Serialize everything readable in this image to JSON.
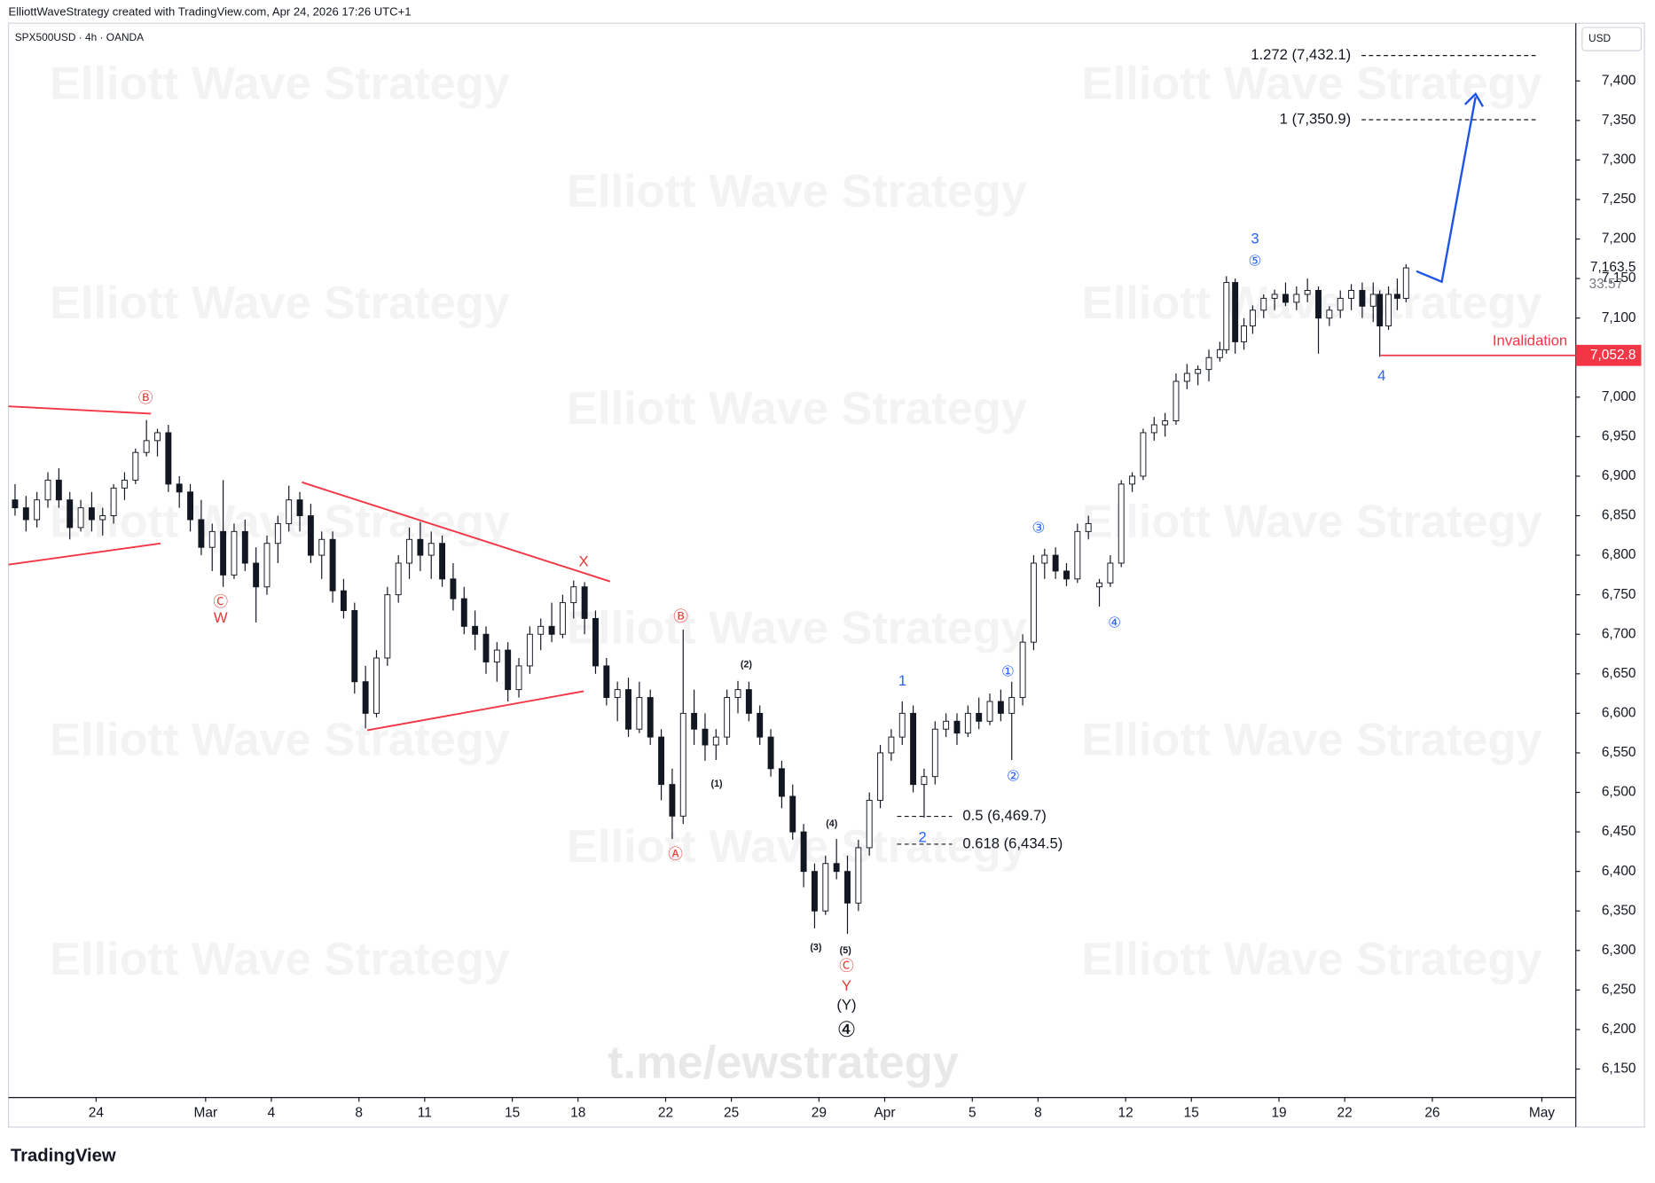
{
  "header": {
    "credit": "ElliottWaveStrategy created with TradingView.com, Apr 24, 2026 17:26 UTC+1",
    "logo": "TradingView"
  },
  "watermark": "Elliott Wave Strategy",
  "channel": "t.me/ewstrategy",
  "chart_data": {
    "type": "candlestick",
    "title": "SPX500USD · 4h · OANDA",
    "currency": "USD",
    "up_color": "#ffffff",
    "down_color": "#131722",
    "outline_color": "#131722",
    "x": [
      20.3,
      20.8,
      21.3,
      21.8,
      22.3,
      22.8,
      23.3,
      23.8,
      24.3,
      24.8,
      25.3,
      25.8,
      26.3,
      26.8,
      27.3,
      27.8,
      28.3,
      28.8,
      29.3,
      29.8,
      30.3,
      30.8,
      31.3,
      31.8,
      32.3,
      32.8,
      33.3,
      33.8,
      34.3,
      34.8,
      35.3,
      35.8,
      36.3,
      36.8,
      37.3,
      37.8,
      38.3,
      38.8,
      39.3,
      39.8,
      40.3,
      40.8,
      41.3,
      41.8,
      42.3,
      42.8,
      43.3,
      43.8,
      44.3,
      44.8,
      45.3,
      45.8,
      46.3,
      46.8,
      47.3,
      47.8,
      48.3,
      48.8,
      49.3,
      49.8,
      50.3,
      50.8,
      51.3,
      51.8,
      52.3,
      52.8,
      53.3,
      53.8,
      54.3,
      54.8,
      55.3,
      55.8,
      56.3,
      56.8,
      57.3,
      57.8,
      58.3,
      58.8,
      59.3,
      59.8,
      60.3,
      60.8,
      61.3,
      61.8,
      62.3,
      62.8,
      63.3,
      63.8,
      64.3,
      64.8,
      65.3,
      65.8,
      66.3,
      66.8,
      67.3,
      67.8,
      68.3,
      68.8,
      69.3,
      69.8,
      70.3,
      70.8,
      71.3,
      71.8,
      72.3,
      72.8,
      73.3,
      73.8,
      74.3,
      74.8,
      75.3,
      75.6,
      76.0,
      76.4,
      76.8,
      77.3,
      77.8,
      78.3,
      78.8,
      79.3,
      79.8,
      80.3,
      80.8,
      81.3,
      81.8,
      82.3,
      82.6,
      83.0,
      83.4,
      83.8
    ],
    "open": [
      6870,
      6860,
      6845,
      6870,
      6895,
      6870,
      6835,
      6860,
      6845,
      6850,
      6885,
      6895,
      6930,
      6945,
      6955,
      6890,
      6880,
      6845,
      6810,
      6830,
      6775,
      6830,
      6790,
      6760,
      6815,
      6840,
      6870,
      6850,
      6800,
      6820,
      6755,
      6730,
      6640,
      6600,
      6670,
      6750,
      6790,
      6820,
      6800,
      6815,
      6770,
      6745,
      6710,
      6700,
      6665,
      6680,
      6630,
      6660,
      6700,
      6710,
      6700,
      6740,
      6760,
      6720,
      6660,
      6620,
      6630,
      6580,
      6620,
      6570,
      6510,
      6470,
      6600,
      6580,
      6560,
      6570,
      6620,
      6630,
      6600,
      6570,
      6530,
      6495,
      6450,
      6400,
      6350,
      6410,
      6400,
      6360,
      6430,
      6490,
      6550,
      6570,
      6600,
      6510,
      6520,
      6580,
      6590,
      6575,
      6600,
      6590,
      6615,
      6600,
      6620,
      6690,
      6790,
      6800,
      6780,
      6770,
      6830,
      6760,
      6765,
      6790,
      6890,
      6900,
      6955,
      6965,
      6970,
      7020,
      7030,
      7035,
      7050,
      7060,
      7145,
      7070,
      7090,
      7110,
      7125,
      7130,
      7120,
      7130,
      7135,
      7100,
      7110,
      7125,
      7135,
      7115,
      7130,
      7090,
      7130,
      7125
    ],
    "high": [
      6890,
      6875,
      6880,
      6905,
      6910,
      6880,
      6870,
      6880,
      6860,
      6890,
      6905,
      6935,
      6971,
      6960,
      6965,
      6900,
      6890,
      6870,
      6840,
      6895,
      6840,
      6845,
      6810,
      6825,
      6850,
      6888,
      6880,
      6865,
      6830,
      6830,
      6770,
      6740,
      6660,
      6680,
      6760,
      6800,
      6835,
      6842,
      6830,
      6825,
      6790,
      6760,
      6730,
      6710,
      6690,
      6690,
      6670,
      6710,
      6720,
      6740,
      6750,
      6768,
      6766,
      6730,
      6670,
      6640,
      6645,
      6640,
      6630,
      6580,
      6530,
      6706,
      6630,
      6600,
      6580,
      6630,
      6641,
      6640,
      6610,
      6580,
      6540,
      6510,
      6460,
      6410,
      6420,
      6441,
      6420,
      6440,
      6500,
      6560,
      6580,
      6615,
      6610,
      6530,
      6590,
      6600,
      6600,
      6610,
      6620,
      6625,
      6630,
      6640,
      6700,
      6800,
      6808,
      6810,
      6790,
      6840,
      6850,
      6770,
      6800,
      6895,
      6905,
      6960,
      6975,
      6980,
      7030,
      7042,
      7040,
      7060,
      7070,
      7153,
      7150,
      7100,
      7116,
      7130,
      7136,
      7145,
      7140,
      7150,
      7140,
      7115,
      7135,
      7143,
      7145,
      7145,
      7135,
      7140,
      7150,
      7168
    ],
    "low": [
      6850,
      6830,
      6835,
      6860,
      6860,
      6820,
      6830,
      6830,
      6825,
      6840,
      6870,
      6890,
      6925,
      6925,
      6880,
      6860,
      6830,
      6800,
      6780,
      6760,
      6770,
      6780,
      6715,
      6750,
      6790,
      6830,
      6830,
      6790,
      6770,
      6740,
      6720,
      6625,
      6581,
      6595,
      6660,
      6740,
      6770,
      6780,
      6770,
      6760,
      6730,
      6700,
      6680,
      6650,
      6640,
      6615,
      6620,
      6650,
      6680,
      6690,
      6695,
      6720,
      6700,
      6650,
      6610,
      6590,
      6570,
      6575,
      6560,
      6490,
      6441,
      6460,
      6560,
      6540,
      6541,
      6560,
      6600,
      6590,
      6560,
      6520,
      6480,
      6440,
      6380,
      6328,
      6345,
      6390,
      6321,
      6350,
      6420,
      6480,
      6540,
      6560,
      6500,
      6468,
      6510,
      6570,
      6560,
      6570,
      6580,
      6585,
      6590,
      6541,
      6610,
      6680,
      6770,
      6770,
      6761,
      6765,
      6820,
      6735,
      6760,
      6785,
      6880,
      6895,
      6945,
      6950,
      6965,
      7010,
      7015,
      7020,
      7045,
      7055,
      7055,
      7060,
      7080,
      7100,
      7110,
      7115,
      7110,
      7120,
      7055,
      7090,
      7100,
      7110,
      7100,
      7095,
      7051,
      7085,
      7110,
      7120
    ],
    "close": [
      6860,
      6845,
      6870,
      6895,
      6870,
      6835,
      6860,
      6845,
      6850,
      6885,
      6895,
      6930,
      6945,
      6955,
      6890,
      6880,
      6845,
      6810,
      6830,
      6775,
      6830,
      6790,
      6760,
      6815,
      6840,
      6870,
      6850,
      6800,
      6820,
      6755,
      6730,
      6640,
      6600,
      6670,
      6750,
      6790,
      6820,
      6800,
      6815,
      6770,
      6745,
      6710,
      6700,
      6665,
      6680,
      6630,
      6660,
      6700,
      6710,
      6700,
      6740,
      6760,
      6720,
      6660,
      6620,
      6630,
      6580,
      6620,
      6570,
      6510,
      6470,
      6600,
      6580,
      6560,
      6570,
      6620,
      6630,
      6600,
      6570,
      6530,
      6495,
      6450,
      6400,
      6350,
      6410,
      6400,
      6360,
      6430,
      6490,
      6550,
      6570,
      6600,
      6510,
      6520,
      6580,
      6590,
      6575,
      6600,
      6590,
      6615,
      6600,
      6620,
      6690,
      6790,
      6800,
      6780,
      6770,
      6830,
      6840,
      6765,
      6790,
      6890,
      6900,
      6955,
      6965,
      6970,
      7020,
      7030,
      7035,
      7050,
      7060,
      7145,
      7070,
      7090,
      7110,
      7125,
      7130,
      7120,
      7130,
      7135,
      7100,
      7110,
      7125,
      7135,
      7115,
      7130,
      7090,
      7130,
      7125,
      7163.5
    ],
    "xlim": [
      20,
      91.55
    ],
    "ylim": [
      6114,
      7473
    ],
    "xticks": [
      24,
      {
        "value": 29,
        "label": "Mar"
      },
      {
        "value": 32,
        "label": "4"
      },
      {
        "value": 36,
        "label": "8"
      },
      {
        "value": 39,
        "label": "11"
      },
      {
        "value": 43,
        "label": "15"
      },
      {
        "value": 46,
        "label": "18"
      },
      {
        "value": 50,
        "label": "22"
      },
      {
        "value": 53,
        "label": "25"
      },
      {
        "value": 57,
        "label": "29"
      },
      {
        "value": 60,
        "label": "Apr"
      },
      {
        "value": 64,
        "label": "5"
      },
      {
        "value": 67,
        "label": "8"
      },
      {
        "value": 71,
        "label": "12"
      },
      {
        "value": 74,
        "label": "15"
      },
      {
        "value": 78,
        "label": "19"
      },
      {
        "value": 81,
        "label": "22"
      },
      {
        "value": 85,
        "label": "26"
      },
      {
        "value": 90,
        "label": "May"
      }
    ],
    "yticks": [
      {
        "value": 6150,
        "label": "6,150"
      },
      {
        "value": 6200,
        "label": "6,200"
      },
      {
        "value": 6250,
        "label": "6,250"
      },
      {
        "value": 6300,
        "label": "6,300"
      },
      {
        "value": 6350,
        "label": "6,350"
      },
      {
        "value": 6400,
        "label": "6,400"
      },
      {
        "value": 6450,
        "label": "6,450"
      },
      {
        "value": 6500,
        "label": "6,500"
      },
      {
        "value": 6550,
        "label": "6,550"
      },
      {
        "value": 6600,
        "label": "6,600"
      },
      {
        "value": 6650,
        "label": "6,650"
      },
      {
        "value": 6700,
        "label": "6,700"
      },
      {
        "value": 6750,
        "label": "6,750"
      },
      {
        "value": 6800,
        "label": "6,800"
      },
      {
        "value": 6850,
        "label": "6,850"
      },
      {
        "value": 6900,
        "label": "6,900"
      },
      {
        "value": 6950,
        "label": "6,950"
      },
      {
        "value": 7000,
        "label": "7,000"
      },
      {
        "value": 7050,
        "label": "7,050"
      },
      {
        "value": 7100,
        "label": "7,100"
      },
      {
        "value": 7150,
        "label": "7,150"
      },
      {
        "value": 7200,
        "label": "7,200"
      },
      {
        "value": 7250,
        "label": "7,250"
      },
      {
        "value": 7300,
        "label": "7,300"
      },
      {
        "value": 7350,
        "label": "7,350"
      },
      {
        "value": 7400,
        "label": "7,400"
      }
    ],
    "last_price": {
      "value": 7163.5,
      "label": "7,163.5"
    },
    "countdown": "33:57",
    "invalidation": {
      "text": "Invalidation",
      "value": 7052.8,
      "label": "7,052.8"
    },
    "fib_targets": [
      {
        "value": 7432.1,
        "label": "1.272 (7,432.1)"
      },
      {
        "value": 7350.9,
        "label": "1 (7,350.9)"
      }
    ],
    "fib_retracements": [
      {
        "value": 6469.7,
        "label": "0.5 (6,469.7)"
      },
      {
        "value": 6434.5,
        "label": "0.618 (6,434.5)"
      }
    ],
    "wave_labels": [
      "Ⓑ",
      "Ⓒ",
      "W",
      "X",
      "Ⓑ",
      "Ⓐ",
      "(1)",
      "(2)",
      "(3)",
      "(4)",
      "(5)",
      "Ⓒ",
      "Y",
      "(Y)",
      "④",
      "1",
      "2",
      "①",
      "②",
      "③",
      "④",
      "3",
      "⑤",
      "4"
    ]
  }
}
